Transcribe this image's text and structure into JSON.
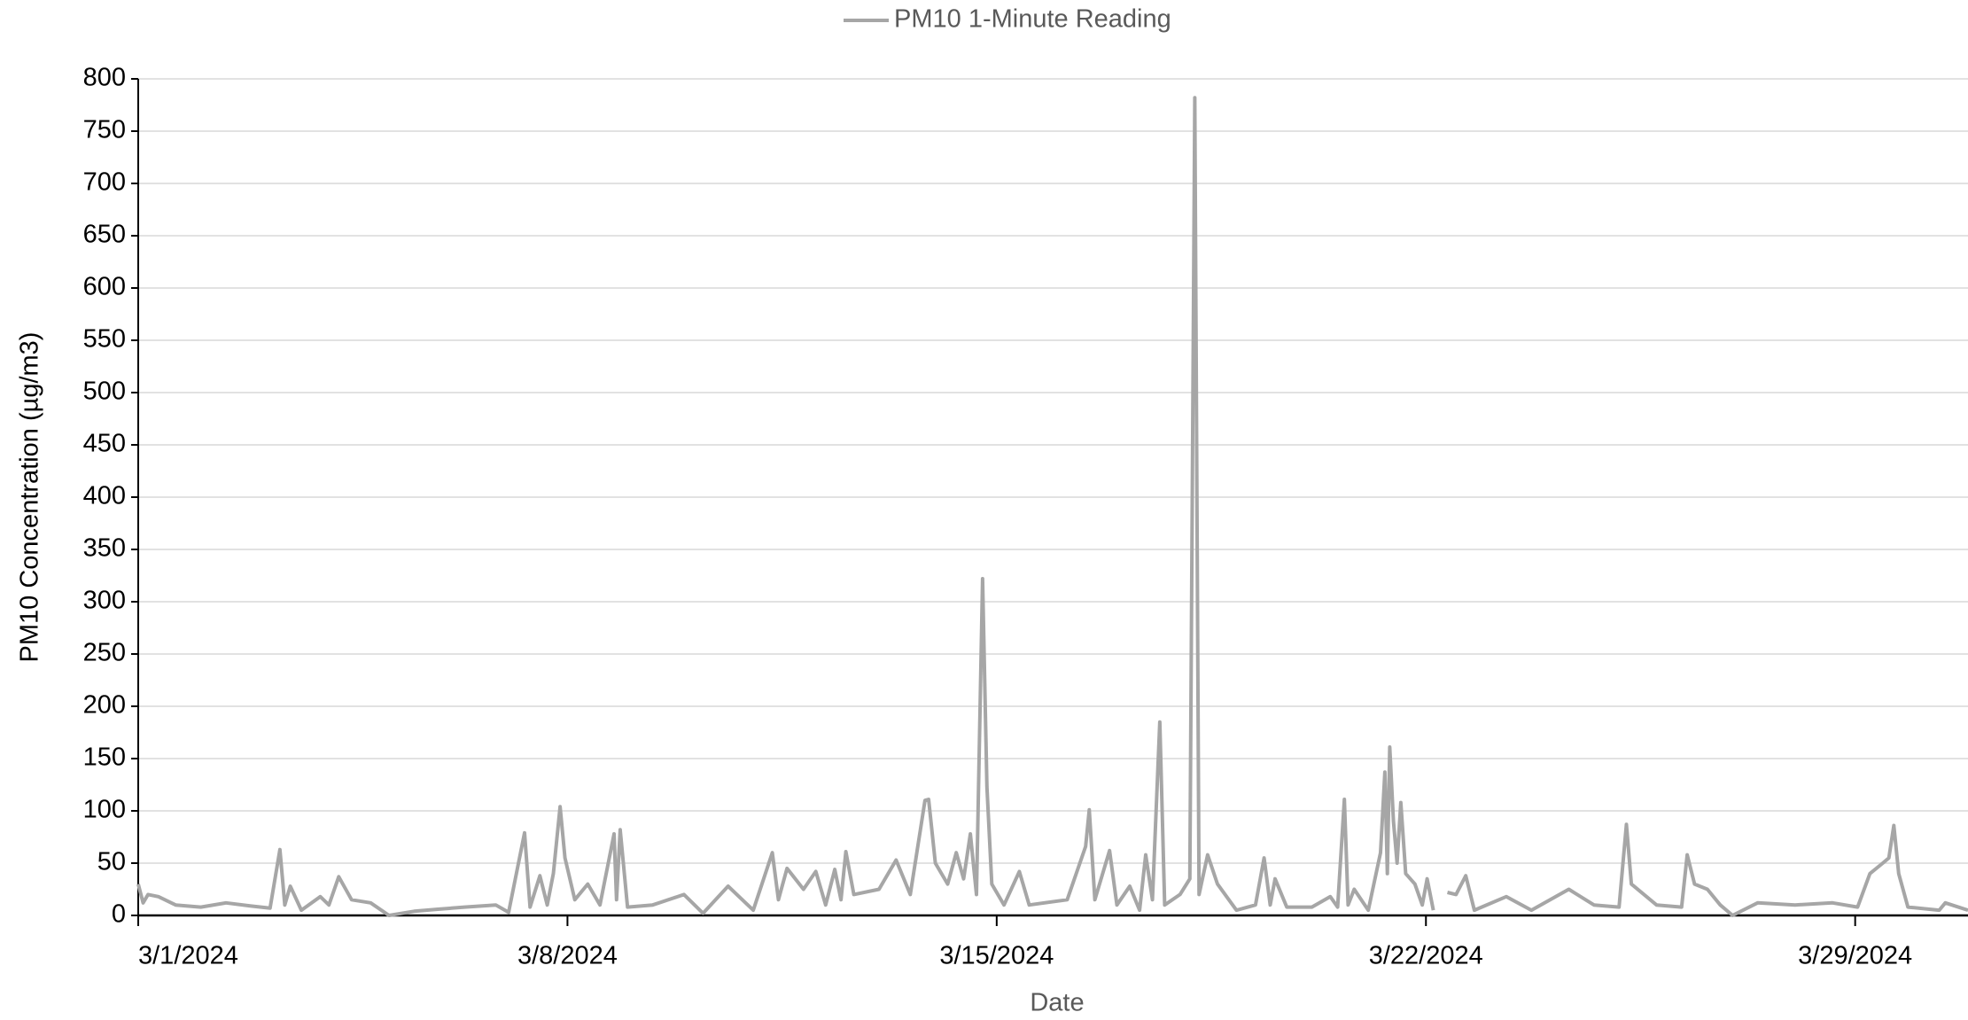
{
  "chart_data": {
    "type": "line",
    "xlabel": "Date",
    "ylabel": "PM10 Concentration (µg/m3)",
    "x": [
      45352.0,
      45352.08,
      45352.16,
      45352.33,
      45352.61,
      45353.02,
      45353.43,
      45353.84,
      45354.15,
      45354.31,
      45354.39,
      45354.48,
      45354.66,
      45354.97,
      45355.11,
      45355.27,
      45355.48,
      45355.79,
      45356.09,
      45356.5,
      45356.91,
      45357.32,
      45357.83,
      45358.04,
      45358.3,
      45358.39,
      45358.55,
      45358.67,
      45358.77,
      45358.88,
      45358.96,
      45359.12,
      45359.33,
      45359.53,
      45359.76,
      45359.8,
      45359.86,
      45359.98,
      45360.39,
      45360.9,
      45361.21,
      45361.62,
      45362.03,
      45362.34,
      45362.44,
      45362.58,
      45362.85,
      45363.05,
      45363.21,
      45363.36,
      45363.46,
      45363.54,
      45363.67,
      45364.08,
      45364.36,
      45364.59,
      45364.83,
      45364.89,
      45365.0,
      45365.2,
      45365.34,
      45365.46,
      45365.57,
      45365.67,
      45365.77,
      45365.84,
      45365.92,
      45366.12,
      45366.37,
      45366.53,
      45367.15,
      45367.45,
      45367.51,
      45367.6,
      45367.84,
      45367.96,
      45368.17,
      45368.33,
      45368.43,
      45368.54,
      45368.66,
      45368.74,
      45368.99,
      45369.15,
      45369.23,
      45369.3,
      45369.44,
      45369.6,
      45369.91,
      45370.22,
      45370.36,
      45370.46,
      45370.54,
      45370.73,
      45371.14,
      45371.44,
      45371.56,
      45371.67,
      45371.73,
      45371.83,
      45372.06,
      45372.26,
      45372.33,
      45372.37,
      45372.41,
      45372.47,
      45372.53,
      45372.59,
      45372.67,
      45372.82,
      45372.94,
      45373.02,
      45373.12,
      45373.25,
      45373.35,
      45373.49,
      45373.65,
      45373.79,
      45374.31,
      45374.72,
      45375.33,
      45375.74,
      45376.15,
      45376.27,
      45376.35,
      45376.76,
      45377.17,
      45377.26,
      45377.38,
      45377.59,
      45377.8,
      45378.0,
      45378.41,
      45379.02,
      45379.63,
      45380.04,
      45380.24,
      45380.45,
      45380.55,
      45380.63,
      45380.71,
      45380.86,
      45381.37,
      45381.47,
      45381.84
    ],
    "series": [
      {
        "name": "PM10 1-Minute Reading",
        "color": "#a6a6a6",
        "values": [
          30,
          12,
          20,
          18,
          10,
          8,
          12,
          9,
          7,
          63,
          10,
          28,
          5,
          18,
          10,
          37,
          15,
          12,
          0,
          4,
          6,
          8,
          10,
          3,
          79,
          8,
          38,
          10,
          40,
          104,
          55,
          15,
          30,
          10,
          78,
          15,
          82,
          8,
          10,
          20,
          2,
          28,
          5,
          60,
          15,
          45,
          25,
          42,
          10,
          44,
          15,
          61,
          20,
          25,
          53,
          20,
          110,
          111,
          50,
          30,
          60,
          35,
          78,
          20,
          322,
          123,
          30,
          10,
          42,
          10,
          15,
          66,
          101,
          15,
          62,
          10,
          28,
          5,
          58,
          15,
          185,
          10,
          20,
          35,
          782,
          20,
          58,
          30,
          5,
          10,
          55,
          10,
          35,
          8,
          8,
          18,
          8,
          111,
          10,
          25,
          5,
          60,
          137,
          40,
          161,
          90,
          50,
          108,
          40,
          30,
          10,
          35,
          5,
          null,
          22,
          20,
          38,
          5,
          18,
          5,
          25,
          10,
          8,
          87,
          30,
          10,
          8,
          58,
          30,
          25,
          10,
          0,
          12,
          10,
          12,
          8,
          40,
          50,
          55,
          86,
          40,
          8,
          5,
          12,
          5
        ]
      }
    ],
    "xlim": [
      45352,
      45381.84
    ],
    "xticks": [
      {
        "value": 45352,
        "label": "3/1/2024"
      },
      {
        "value": 45359,
        "label": "3/8/2024"
      },
      {
        "value": 45366,
        "label": "3/15/2024"
      },
      {
        "value": 45373,
        "label": "3/22/2024"
      },
      {
        "value": 45380,
        "label": "3/29/2024"
      }
    ],
    "ylim": [
      0,
      800
    ],
    "yticks": [
      0,
      50,
      100,
      150,
      200,
      250,
      300,
      350,
      400,
      450,
      500,
      550,
      600,
      650,
      700,
      750,
      800
    ],
    "grid": true,
    "legend": "top"
  }
}
